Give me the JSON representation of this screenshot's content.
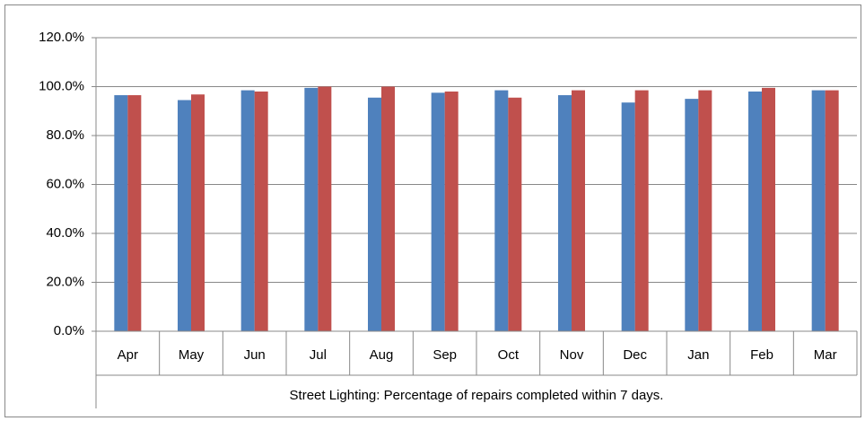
{
  "chart_data": {
    "type": "bar",
    "xlabel": "Street Lighting: Percentage of repairs completed within 7 days.",
    "categories": [
      "Apr",
      "May",
      "Jun",
      "Jul",
      "Aug",
      "Sep",
      "Oct",
      "Nov",
      "Dec",
      "Jan",
      "Feb",
      "Mar"
    ],
    "series": [
      {
        "color": "#4f81bd",
        "values": [
          96.5,
          94.5,
          98.5,
          99.5,
          95.5,
          97.5,
          98.5,
          96.5,
          93.5,
          95,
          98,
          98.5
        ]
      },
      {
        "color": "#c0504d",
        "values": [
          96.5,
          96.8,
          98,
          100,
          100,
          98,
          95.5,
          98.5,
          98.5,
          98.5,
          99.5,
          98.5
        ]
      }
    ],
    "ylim": [
      0,
      120
    ],
    "yticks": [
      {
        "value": 0,
        "label": "0.0%"
      },
      {
        "value": 20,
        "label": "20.0%"
      },
      {
        "value": 40,
        "label": "40.0%"
      },
      {
        "value": 60,
        "label": "60.0%"
      },
      {
        "value": 80,
        "label": "80.0%"
      },
      {
        "value": 100,
        "label": "100.0%"
      },
      {
        "value": 120,
        "label": "120.0%"
      }
    ],
    "grid": true
  }
}
